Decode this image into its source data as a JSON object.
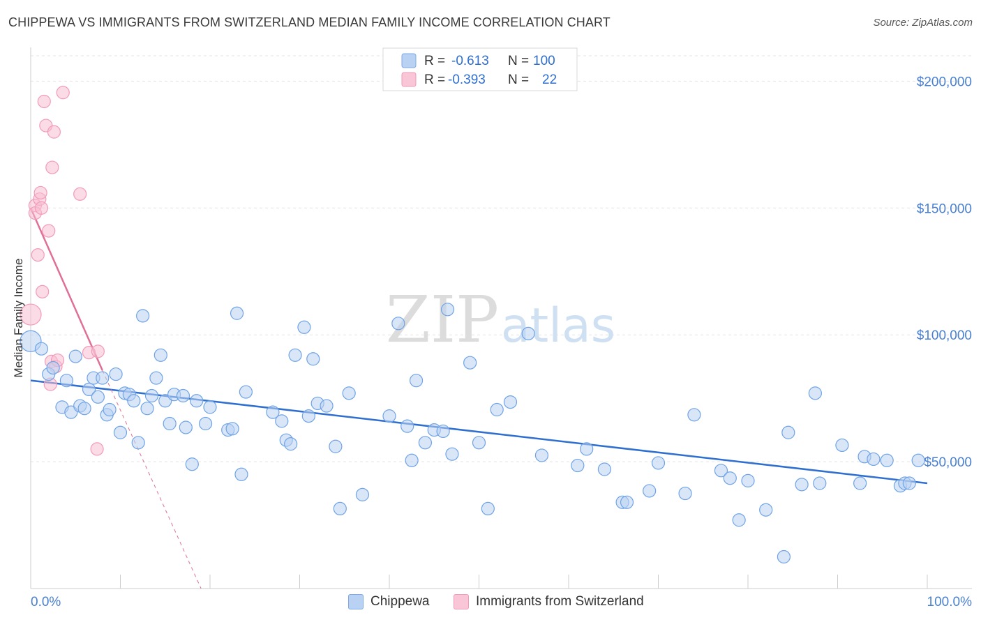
{
  "title": "CHIPPEWA VS IMMIGRANTS FROM SWITZERLAND MEDIAN FAMILY INCOME CORRELATION CHART",
  "source": "Source: ZipAtlas.com",
  "watermark": {
    "zip": "ZIP",
    "atlas": "atlas"
  },
  "legend": {
    "row1": {
      "r_label": "R = ",
      "r_value": "-0.613",
      "n_label": "N = ",
      "n_value": "100"
    },
    "row2": {
      "r_label": "R = ",
      "r_value": "-0.393",
      "n_label": "N = ",
      "n_value": "22"
    }
  },
  "chart_data": {
    "type": "scatter",
    "title": "CHIPPEWA VS IMMIGRANTS FROM SWITZERLAND MEDIAN FAMILY INCOME CORRELATION CHART",
    "xlabel": "",
    "ylabel": "Median Family Income",
    "xlim": [
      0,
      100
    ],
    "ylim": [
      0,
      210000
    ],
    "x_tick_labels": [
      "0.0%",
      "100.0%"
    ],
    "y_ticks": [
      50000,
      100000,
      150000,
      200000
    ],
    "y_tick_labels": [
      "$50,000",
      "$100,000",
      "$150,000",
      "$200,000"
    ],
    "colors": {
      "chippewa": "#6fa3e6",
      "chippewa_line": "#2f6fd0",
      "swiss": "#f29bb8",
      "swiss_line": "#e06f98",
      "axis_label": "#4a80d0"
    },
    "series": [
      {
        "name": "Chippewa",
        "r": -0.613,
        "n": 100,
        "trend": {
          "x0": 0,
          "y0": 82000,
          "x1": 100,
          "y1": 41500
        },
        "points": [
          [
            0,
            97500,
            30
          ],
          [
            1.2,
            94500,
            18
          ],
          [
            2,
            84500,
            18
          ],
          [
            2.5,
            87000,
            18
          ],
          [
            3.5,
            71500,
            18
          ],
          [
            4,
            82000,
            18
          ],
          [
            4.5,
            69500,
            18
          ],
          [
            5,
            91500,
            18
          ],
          [
            5.5,
            72000,
            18
          ],
          [
            6,
            71000,
            18
          ],
          [
            6.5,
            78500,
            18
          ],
          [
            7,
            83000,
            18
          ],
          [
            7.5,
            75500,
            18
          ],
          [
            8,
            83000,
            18
          ],
          [
            8.5,
            68500,
            18
          ],
          [
            8.8,
            70500,
            18
          ],
          [
            9.5,
            84500,
            18
          ],
          [
            10,
            61500,
            18
          ],
          [
            10.5,
            77000,
            18
          ],
          [
            11,
            76500,
            18
          ],
          [
            11.5,
            74000,
            18
          ],
          [
            12,
            57500,
            18
          ],
          [
            12.5,
            107500,
            18
          ],
          [
            13,
            71000,
            18
          ],
          [
            13.5,
            76000,
            18
          ],
          [
            14,
            83000,
            18
          ],
          [
            14.5,
            92000,
            18
          ],
          [
            15,
            74000,
            18
          ],
          [
            15.5,
            65000,
            18
          ],
          [
            16,
            76500,
            18
          ],
          [
            17,
            76000,
            18
          ],
          [
            17.3,
            63500,
            18
          ],
          [
            18,
            49000,
            18
          ],
          [
            18.5,
            74000,
            18
          ],
          [
            19.5,
            65000,
            18
          ],
          [
            20,
            71500,
            18
          ],
          [
            22,
            62500,
            18
          ],
          [
            22.5,
            63000,
            18
          ],
          [
            23,
            108500,
            18
          ],
          [
            23.5,
            45000,
            18
          ],
          [
            24,
            77500,
            18
          ],
          [
            27,
            69500,
            18
          ],
          [
            28,
            66000,
            18
          ],
          [
            28.5,
            58500,
            18
          ],
          [
            29,
            57000,
            18
          ],
          [
            29.5,
            92000,
            18
          ],
          [
            30.5,
            103000,
            18
          ],
          [
            31,
            68000,
            18
          ],
          [
            31.5,
            90500,
            18
          ],
          [
            32,
            73000,
            18
          ],
          [
            33,
            72000,
            18
          ],
          [
            34,
            56000,
            18
          ],
          [
            34.5,
            31500,
            18
          ],
          [
            35.5,
            77000,
            18
          ],
          [
            37,
            37000,
            18
          ],
          [
            40,
            68000,
            18
          ],
          [
            41,
            104500,
            18
          ],
          [
            42,
            64000,
            18
          ],
          [
            42.5,
            50500,
            18
          ],
          [
            43,
            82000,
            18
          ],
          [
            44,
            57500,
            18
          ],
          [
            45,
            62500,
            18
          ],
          [
            46,
            62000,
            18
          ],
          [
            46.5,
            110000,
            18
          ],
          [
            47,
            53000,
            18
          ],
          [
            49,
            89000,
            18
          ],
          [
            50,
            57500,
            18
          ],
          [
            51,
            31500,
            18
          ],
          [
            52,
            70500,
            18
          ],
          [
            53.5,
            73500,
            18
          ],
          [
            55.5,
            100500,
            18
          ],
          [
            57,
            52500,
            18
          ],
          [
            61,
            48500,
            18
          ],
          [
            62,
            55000,
            18
          ],
          [
            64,
            47000,
            18
          ],
          [
            66,
            34000,
            18
          ],
          [
            66.5,
            34000,
            18
          ],
          [
            70,
            49500,
            18
          ],
          [
            73,
            37500,
            18
          ],
          [
            74,
            68500,
            18
          ],
          [
            77,
            46500,
            18
          ],
          [
            78,
            43500,
            18
          ],
          [
            79,
            27000,
            18
          ],
          [
            80,
            42500,
            18
          ],
          [
            82,
            31000,
            18
          ],
          [
            84,
            12500,
            18
          ],
          [
            84.5,
            61500,
            18
          ],
          [
            87.5,
            77000,
            18
          ],
          [
            88,
            41500,
            18
          ],
          [
            90.5,
            56500,
            18
          ],
          [
            92.5,
            41500,
            18
          ],
          [
            93,
            52000,
            18
          ],
          [
            94,
            51000,
            18
          ],
          [
            95.5,
            50500,
            18
          ],
          [
            97,
            40500,
            18
          ],
          [
            97.5,
            41500,
            18
          ],
          [
            98,
            41500,
            18
          ],
          [
            99,
            50500,
            18
          ],
          [
            86,
            41000,
            18
          ],
          [
            69,
            38500,
            18
          ]
        ]
      },
      {
        "name": "Immigrants from Switzerland",
        "r": -0.393,
        "n": 22,
        "trend": {
          "x0": 0,
          "y0": 150000,
          "x1": 8,
          "y1": 86000
        },
        "trend_dashed_extension": {
          "x0": 8,
          "y0": 86000,
          "x1": 19,
          "y1": 0
        },
        "points": [
          [
            0,
            108000,
            30
          ],
          [
            0.5,
            151000,
            18
          ],
          [
            0.5,
            148000,
            18
          ],
          [
            0.8,
            131500,
            18
          ],
          [
            1,
            153500,
            18
          ],
          [
            1.1,
            156000,
            18
          ],
          [
            1.2,
            150000,
            18
          ],
          [
            1.3,
            117000,
            18
          ],
          [
            1.5,
            192000,
            18
          ],
          [
            1.7,
            182500,
            18
          ],
          [
            2,
            141000,
            18
          ],
          [
            2.2,
            80500,
            18
          ],
          [
            2.3,
            89500,
            18
          ],
          [
            2.4,
            166000,
            18
          ],
          [
            2.6,
            180000,
            18
          ],
          [
            2.8,
            87500,
            18
          ],
          [
            3,
            90000,
            18
          ],
          [
            3.6,
            195500,
            18
          ],
          [
            5.5,
            155500,
            18
          ],
          [
            6.5,
            93000,
            18
          ],
          [
            7.5,
            93500,
            18
          ],
          [
            7.4,
            55000,
            18
          ]
        ]
      }
    ]
  },
  "bottom_legend": {
    "series1": "Chippewa",
    "series2": "Immigrants from Switzerland"
  }
}
